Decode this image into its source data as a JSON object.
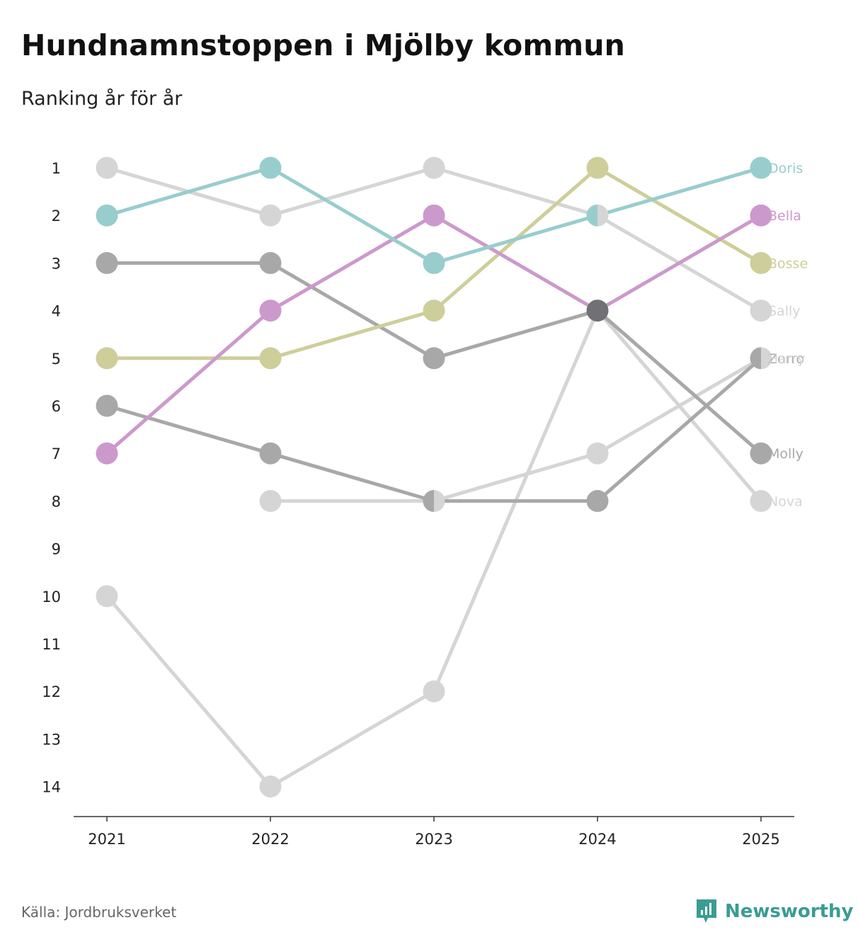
{
  "title": "Hundnamnstoppen i Mjölby kommun",
  "subtitle": "Ranking år för år",
  "source": "Källa: Jordbruksverket",
  "brand": "Newsworthy",
  "chart_data": {
    "type": "line",
    "subtype": "bump",
    "title": "Hundnamnstoppen i Mjölby kommun",
    "subtitle": "Ranking år för år",
    "xlabel": "",
    "ylabel": "",
    "x": [
      "2021",
      "2022",
      "2023",
      "2024",
      "2025"
    ],
    "y_ticks": [
      "1",
      "2",
      "3",
      "4",
      "5",
      "6",
      "7",
      "8",
      "9",
      "10",
      "11",
      "12",
      "13",
      "14"
    ],
    "ylim": [
      1,
      14
    ],
    "y_inverted": true,
    "grid": false,
    "series": [
      {
        "name": "Sally",
        "color": "#d5d5d5",
        "values": [
          1,
          2,
          1,
          2,
          4
        ]
      },
      {
        "name": "Nova",
        "color": "#d5d5d5",
        "values": [
          10,
          14,
          12,
          4,
          8
        ]
      },
      {
        "name": "Harry",
        "color": "#d5d5d5",
        "values": [
          null,
          8,
          8,
          7,
          5
        ]
      },
      {
        "name": "Zorro",
        "color": "#a8a8a8",
        "values": [
          6,
          7,
          8,
          8,
          5
        ]
      },
      {
        "name": "Molly",
        "color": "#a8a8a8",
        "values": [
          3,
          3,
          5,
          4,
          7
        ]
      },
      {
        "name": "Bosse",
        "color": "#cece9a",
        "values": [
          5,
          5,
          4,
          1,
          3
        ]
      },
      {
        "name": "Bella",
        "color": "#cc99cc",
        "values": [
          7,
          4,
          2,
          4,
          2
        ]
      },
      {
        "name": "Doris",
        "color": "#98cdcd",
        "values": [
          2,
          1,
          3,
          2,
          1
        ]
      }
    ],
    "end_labels": [
      "Doris",
      "Bella",
      "Bosse",
      "Sally",
      "Zorro",
      "Harry",
      "Molly",
      "Nova"
    ],
    "overlap_color": "#707075"
  }
}
